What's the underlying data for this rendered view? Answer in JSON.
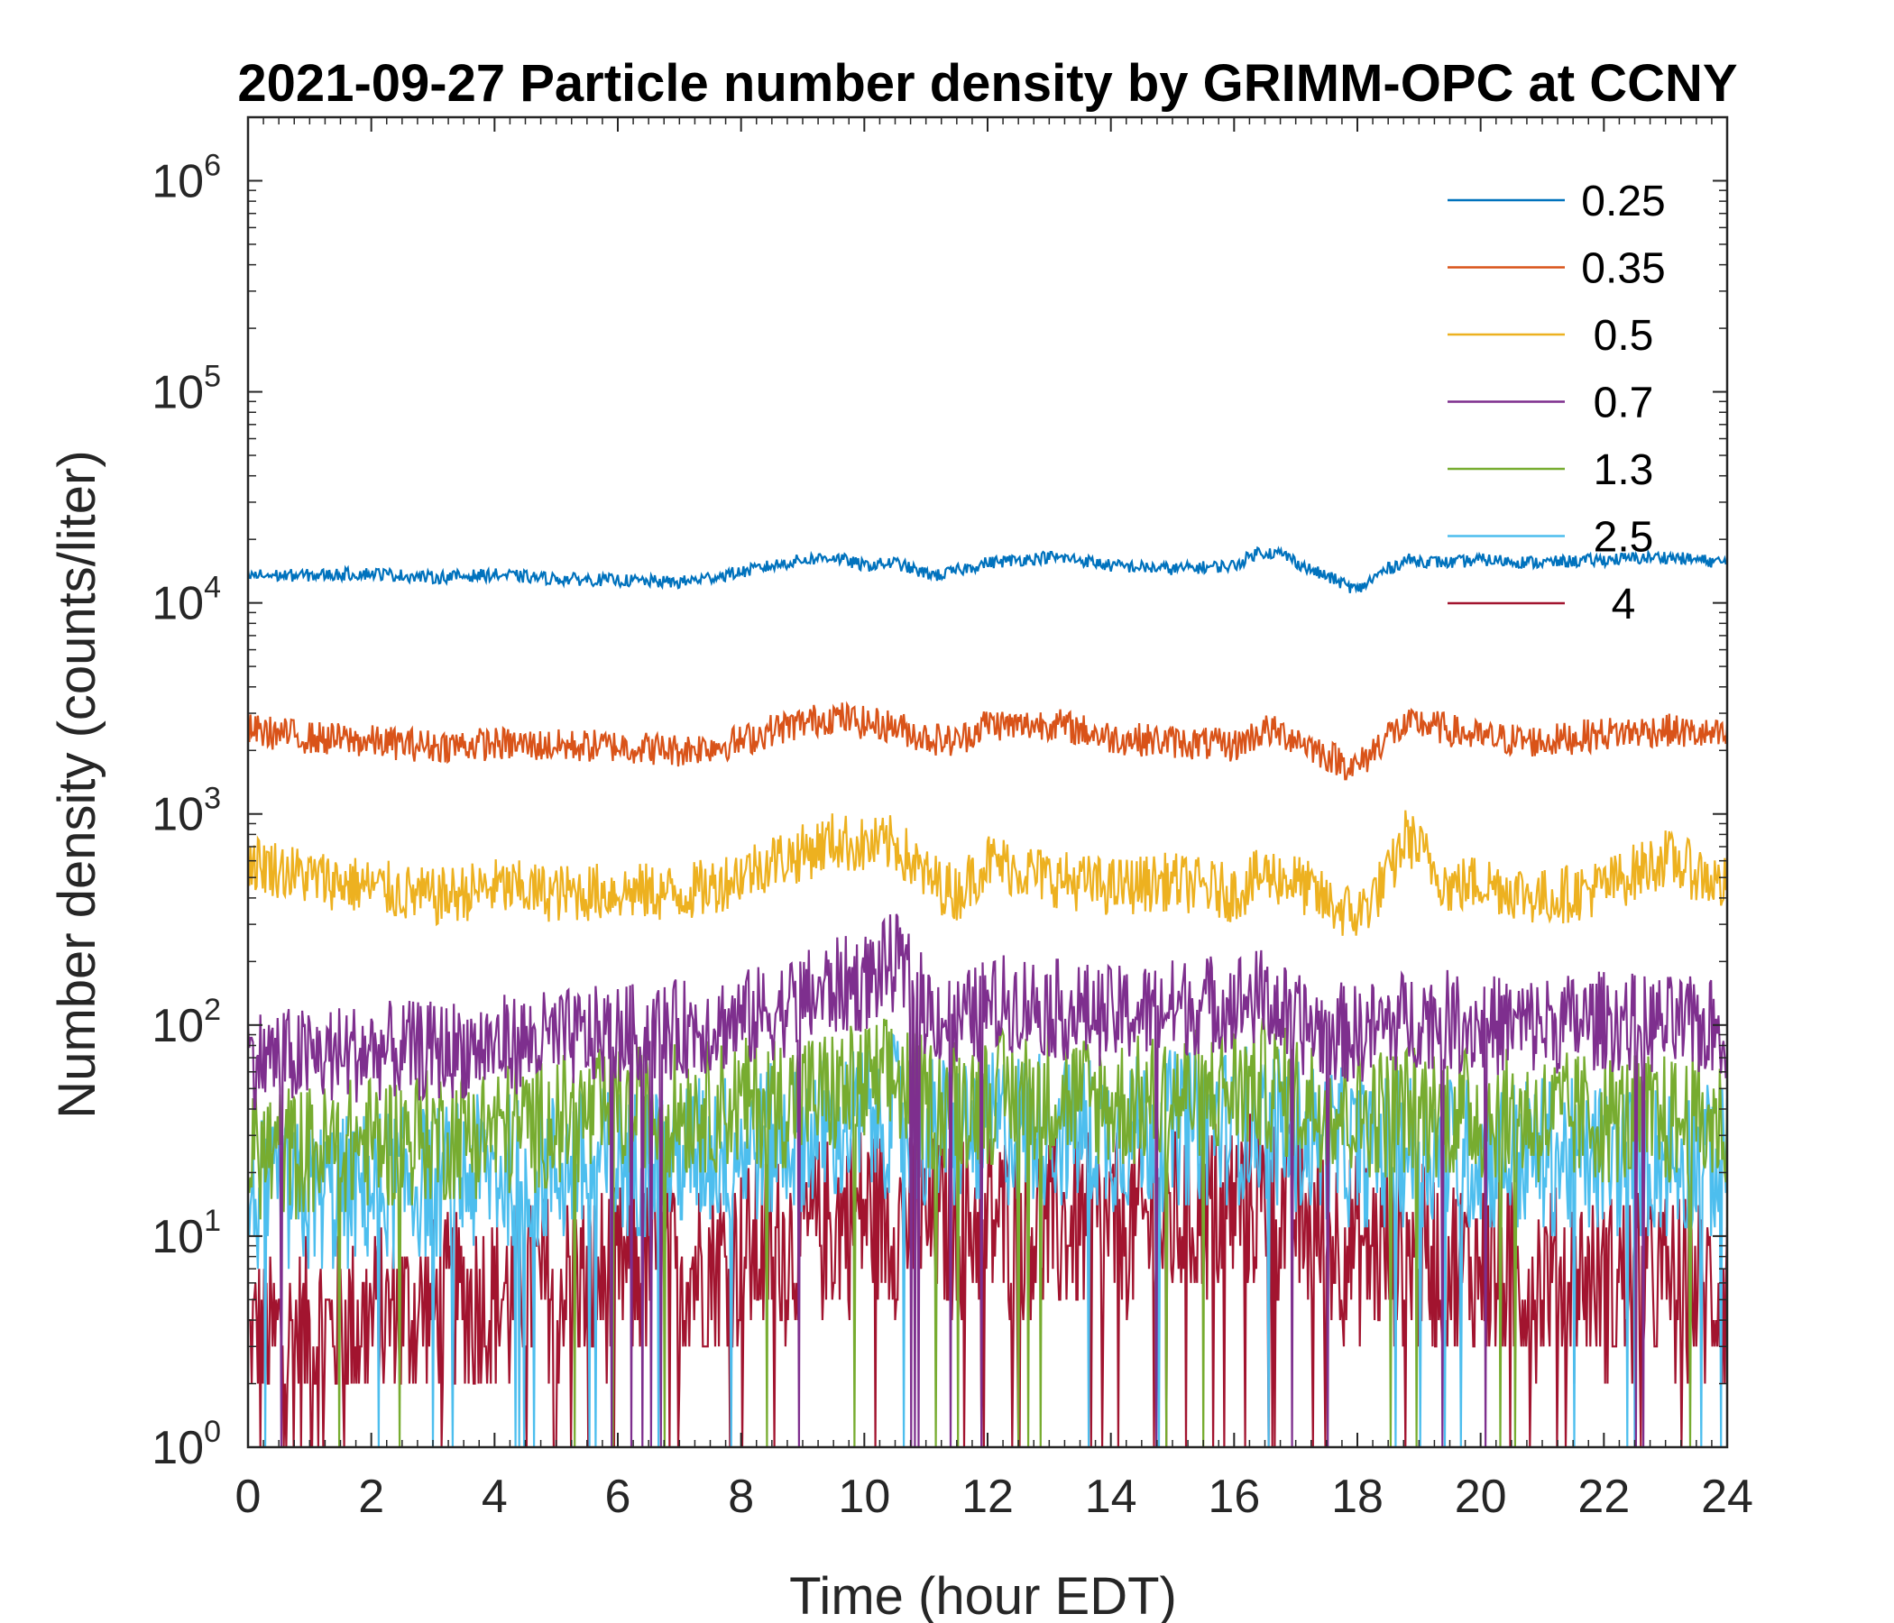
{
  "chart_data": {
    "type": "line",
    "title": "2021-09-27 Particle number density by GRIMM-OPC at CCNY",
    "xlabel": "Time (hour EDT)",
    "ylabel": "Number density (counts/liter)",
    "xlim": [
      0,
      24
    ],
    "ylim": [
      1,
      2000000
    ],
    "yscale": "log",
    "xticks": [
      0,
      2,
      4,
      6,
      8,
      10,
      12,
      14,
      16,
      18,
      20,
      22,
      24
    ],
    "yticks": [
      {
        "base": "10",
        "exp": "0",
        "value": 1
      },
      {
        "base": "10",
        "exp": "1",
        "value": 10
      },
      {
        "base": "10",
        "exp": "2",
        "value": 100
      },
      {
        "base": "10",
        "exp": "3",
        "value": 1000
      },
      {
        "base": "10",
        "exp": "4",
        "value": 10000
      },
      {
        "base": "10",
        "exp": "5",
        "value": 100000
      },
      {
        "base": "10",
        "exp": "6",
        "value": 1000000
      }
    ],
    "legend_position": "top-right",
    "grid": false,
    "series": [
      {
        "name": "0.25",
        "color": "#0072BD",
        "noise": 0.03,
        "x": [
          0,
          1,
          2,
          3,
          4,
          5,
          6,
          7,
          7.5,
          8,
          8.5,
          9,
          9.5,
          10,
          10.5,
          10.9,
          11.2,
          12,
          12.5,
          13,
          13.5,
          14,
          15,
          16,
          16.4,
          16.8,
          17.2,
          17.6,
          18,
          18.4,
          18.8,
          19.5,
          20,
          21,
          22,
          23,
          24
        ],
        "y": [
          13500,
          13500,
          13800,
          13200,
          13600,
          13000,
          12800,
          12500,
          13200,
          14000,
          15000,
          16000,
          16500,
          15000,
          15500,
          14000,
          13500,
          15500,
          16000,
          16500,
          16000,
          15000,
          14500,
          15000,
          17500,
          17000,
          14500,
          13000,
          11500,
          14000,
          16000,
          15500,
          16000,
          15500,
          16000,
          16500,
          15500
        ]
      },
      {
        "name": "0.35",
        "color": "#D95319",
        "noise": 0.08,
        "x": [
          0,
          1,
          2,
          3,
          4,
          5,
          6,
          7,
          7.5,
          8,
          8.5,
          9,
          9.5,
          10,
          10.5,
          11,
          11.5,
          12,
          12.5,
          13,
          13.5,
          14,
          15,
          16,
          16.5,
          17,
          17.5,
          18,
          18.5,
          19,
          20,
          21,
          22,
          23,
          24
        ],
        "y": [
          2500,
          2300,
          2200,
          2100,
          2150,
          2100,
          2100,
          2000,
          2100,
          2200,
          2500,
          2700,
          2900,
          2700,
          2600,
          2300,
          2200,
          2700,
          2600,
          2700,
          2500,
          2300,
          2200,
          2100,
          2500,
          2300,
          1900,
          1650,
          2400,
          2700,
          2300,
          2200,
          2400,
          2500,
          2300
        ]
      },
      {
        "name": "0.5",
        "color": "#EDB120",
        "noise": 0.14,
        "x": [
          0,
          1,
          2,
          3,
          4,
          5,
          6,
          7,
          7.5,
          8,
          8.5,
          9,
          9.5,
          10,
          10.5,
          11,
          11.5,
          12,
          12.5,
          13,
          14,
          15,
          16,
          16.5,
          17,
          17.5,
          18,
          18.5,
          18.8,
          19.5,
          20,
          21,
          22,
          23,
          24
        ],
        "y": [
          600,
          500,
          450,
          400,
          450,
          420,
          430,
          420,
          450,
          520,
          600,
          650,
          750,
          700,
          720,
          500,
          420,
          600,
          550,
          500,
          450,
          480,
          420,
          520,
          480,
          380,
          330,
          500,
          800,
          450,
          480,
          400,
          450,
          620,
          450
        ]
      },
      {
        "name": "0.7",
        "color": "#7E2F8E",
        "noise": 0.24,
        "x": [
          0,
          1,
          2,
          3,
          4,
          5,
          6,
          7,
          7.5,
          8,
          8.5,
          9,
          9.5,
          10,
          10.5,
          11,
          11.5,
          12,
          12.5,
          13,
          14,
          15,
          16,
          16.5,
          17,
          17.5,
          18,
          18.5,
          19,
          20,
          21,
          22,
          23,
          24
        ],
        "y": [
          70,
          70,
          75,
          75,
          80,
          85,
          90,
          95,
          100,
          105,
          115,
          130,
          150,
          160,
          200,
          120,
          100,
          120,
          130,
          120,
          110,
          120,
          130,
          135,
          100,
          95,
          90,
          100,
          110,
          100,
          100,
          105,
          100,
          95
        ]
      },
      {
        "name": "1.3",
        "color": "#77AC30",
        "noise": 0.32,
        "x": [
          0,
          1,
          2,
          3,
          4,
          5,
          6,
          7,
          8,
          9,
          10,
          10.5,
          11,
          12,
          13,
          14,
          15,
          16,
          16.5,
          17,
          18,
          19,
          20,
          21,
          22,
          23,
          24
        ],
        "y": [
          25,
          25,
          28,
          30,
          32,
          35,
          38,
          40,
          42,
          45,
          50,
          55,
          42,
          45,
          48,
          42,
          45,
          50,
          52,
          45,
          38,
          40,
          38,
          36,
          36,
          35,
          34
        ]
      },
      {
        "name": "2.5",
        "color": "#4DBEEE",
        "noise": 0.38,
        "x": [
          0,
          1,
          2,
          3,
          4,
          5,
          6,
          7,
          8,
          9,
          10,
          10.5,
          11,
          12,
          13,
          14,
          15,
          16,
          16.5,
          17,
          18,
          19,
          20,
          21,
          22,
          23,
          24
        ],
        "y": [
          15,
          15,
          17,
          18,
          20,
          21,
          22,
          24,
          26,
          30,
          35,
          38,
          30,
          32,
          33,
          30,
          32,
          34,
          35,
          30,
          25,
          26,
          24,
          24,
          23,
          23,
          22
        ]
      },
      {
        "name": "4",
        "color": "#A2142F",
        "noise": 0.45,
        "x": [
          0,
          1,
          2,
          3,
          4,
          5,
          6,
          7,
          8,
          9,
          10,
          11,
          12,
          13,
          14,
          15,
          16,
          16.5,
          17,
          18,
          19,
          20,
          21,
          22,
          23,
          24
        ],
        "y": [
          3,
          3.5,
          4,
          4.5,
          5,
          6,
          6.5,
          7,
          8,
          10,
          13,
          11,
          12,
          11,
          11,
          12,
          14,
          15,
          12,
          9,
          8,
          7,
          6.5,
          6,
          6,
          5.5
        ]
      }
    ]
  }
}
